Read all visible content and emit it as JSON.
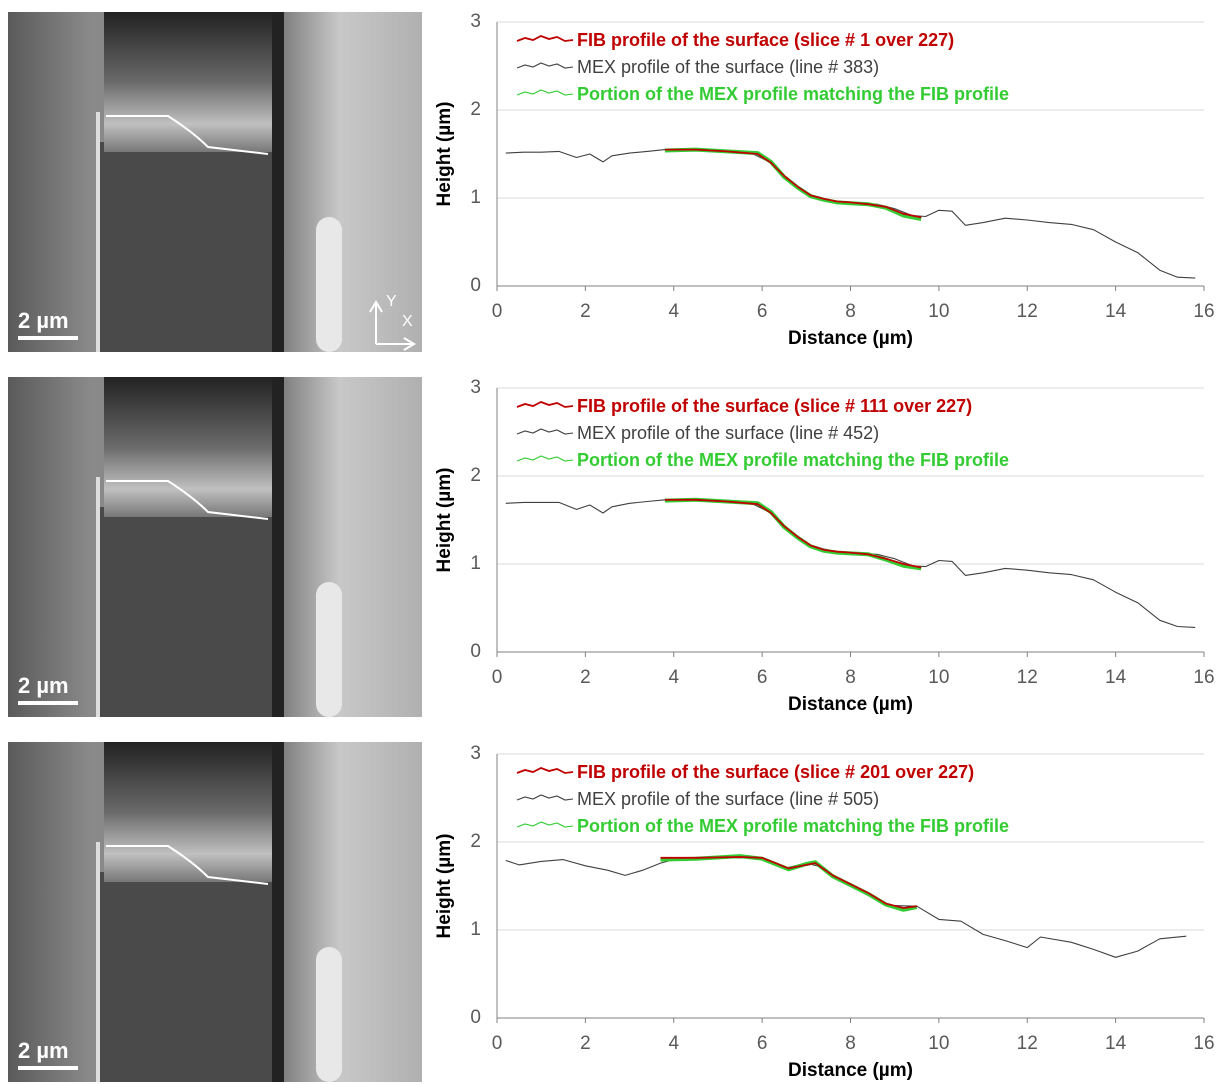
{
  "chart_data": [
    {
      "type": "line",
      "xlabel": "Distance (µm)",
      "ylabel": "Height (µm)",
      "xlim": [
        0,
        16
      ],
      "ylim": [
        0,
        3
      ],
      "xticks": [
        0,
        2,
        4,
        6,
        8,
        10,
        12,
        14,
        16
      ],
      "yticks": [
        0,
        1,
        2,
        3
      ],
      "grid": true,
      "legend": "upper left",
      "series": [
        {
          "name": "FIB profile of the surface (slice # 1 over 227)",
          "color": "#c00000",
          "x": [
            3.8,
            4.5,
            5.2,
            5.9,
            6.2,
            6.5,
            6.8,
            7.1,
            7.4,
            7.7,
            8.0,
            8.4,
            8.8,
            9.2,
            9.6
          ],
          "values": [
            1.55,
            1.55,
            1.53,
            1.5,
            1.4,
            1.25,
            1.13,
            1.03,
            0.99,
            0.96,
            0.95,
            0.93,
            0.9,
            0.82,
            0.78
          ]
        },
        {
          "name": "MEX profile of the surface (line # 383)",
          "color": "#404040",
          "x": [
            0.2,
            0.6,
            1.0,
            1.4,
            1.8,
            2.1,
            2.4,
            2.6,
            3.0,
            3.4,
            3.8,
            4.2,
            5.0,
            5.8,
            6.2,
            6.6,
            7.0,
            7.4,
            7.8,
            8.2,
            8.6,
            9.0,
            9.4,
            9.7,
            10.0,
            10.3,
            10.6,
            11.0,
            11.5,
            12.0,
            12.5,
            13.0,
            13.5,
            14.0,
            14.5,
            15.0,
            15.4,
            15.8
          ],
          "values": [
            1.51,
            1.52,
            1.52,
            1.53,
            1.46,
            1.5,
            1.41,
            1.48,
            1.51,
            1.53,
            1.55,
            1.54,
            1.53,
            1.5,
            1.4,
            1.2,
            1.05,
            0.99,
            0.95,
            0.94,
            0.93,
            0.88,
            0.8,
            0.79,
            0.86,
            0.85,
            0.69,
            0.72,
            0.77,
            0.75,
            0.72,
            0.7,
            0.64,
            0.5,
            0.38,
            0.18,
            0.1,
            0.09
          ]
        },
        {
          "name": "Portion of the MEX profile matching the FIB profile",
          "color": "#33cc33",
          "x": [
            3.8,
            4.5,
            5.2,
            5.9,
            6.2,
            6.5,
            6.8,
            7.1,
            7.4,
            7.7,
            8.0,
            8.4,
            8.8,
            9.2,
            9.6
          ],
          "values": [
            1.54,
            1.55,
            1.53,
            1.51,
            1.41,
            1.24,
            1.12,
            1.02,
            0.98,
            0.95,
            0.94,
            0.93,
            0.89,
            0.8,
            0.76
          ]
        }
      ]
    },
    {
      "type": "line",
      "xlabel": "Distance (µm)",
      "ylabel": "Height (µm)",
      "xlim": [
        0,
        16
      ],
      "ylim": [
        0,
        3
      ],
      "xticks": [
        0,
        2,
        4,
        6,
        8,
        10,
        12,
        14,
        16
      ],
      "yticks": [
        0,
        1,
        2,
        3
      ],
      "grid": true,
      "legend": "upper left",
      "series": [
        {
          "name": "FIB profile of the surface (slice # 111 over 227)",
          "color": "#c00000",
          "x": [
            3.8,
            4.5,
            5.2,
            5.9,
            6.2,
            6.5,
            6.8,
            7.1,
            7.4,
            7.7,
            8.0,
            8.4,
            8.8,
            9.2,
            9.6
          ],
          "values": [
            1.73,
            1.73,
            1.71,
            1.68,
            1.58,
            1.43,
            1.31,
            1.21,
            1.16,
            1.14,
            1.13,
            1.11,
            1.06,
            1.0,
            0.96
          ]
        },
        {
          "name": "MEX profile of the surface (line # 452)",
          "color": "#404040",
          "x": [
            0.2,
            0.6,
            1.0,
            1.4,
            1.8,
            2.1,
            2.4,
            2.6,
            3.0,
            3.4,
            3.8,
            4.2,
            5.0,
            5.8,
            6.2,
            6.6,
            7.0,
            7.4,
            7.8,
            8.2,
            8.6,
            9.0,
            9.4,
            9.7,
            10.0,
            10.3,
            10.6,
            11.0,
            11.5,
            12.0,
            12.5,
            13.0,
            13.5,
            14.0,
            14.5,
            15.0,
            15.4,
            15.8
          ],
          "values": [
            1.69,
            1.7,
            1.7,
            1.7,
            1.62,
            1.67,
            1.58,
            1.65,
            1.69,
            1.71,
            1.73,
            1.72,
            1.71,
            1.68,
            1.58,
            1.38,
            1.23,
            1.17,
            1.13,
            1.12,
            1.11,
            1.06,
            0.98,
            0.97,
            1.04,
            1.03,
            0.87,
            0.9,
            0.95,
            0.93,
            0.9,
            0.88,
            0.82,
            0.68,
            0.56,
            0.36,
            0.29,
            0.28
          ]
        },
        {
          "name": "Portion of the MEX profile matching the FIB profile",
          "color": "#33cc33",
          "x": [
            3.8,
            4.5,
            5.2,
            5.9,
            6.2,
            6.5,
            6.8,
            7.1,
            7.4,
            7.7,
            8.0,
            8.4,
            8.8,
            9.2,
            9.6
          ],
          "values": [
            1.72,
            1.73,
            1.71,
            1.69,
            1.59,
            1.42,
            1.3,
            1.2,
            1.15,
            1.13,
            1.12,
            1.11,
            1.05,
            0.98,
            0.95
          ]
        }
      ]
    },
    {
      "type": "line",
      "xlabel": "Distance (µm)",
      "ylabel": "Height (µm)",
      "xlim": [
        0,
        16
      ],
      "ylim": [
        0,
        3
      ],
      "xticks": [
        0,
        2,
        4,
        6,
        8,
        10,
        12,
        14,
        16
      ],
      "yticks": [
        0,
        1,
        2,
        3
      ],
      "grid": true,
      "legend": "upper left",
      "series": [
        {
          "name": "FIB profile of the surface (slice # 201 over 227)",
          "color": "#c00000",
          "x": [
            3.7,
            4.5,
            5.5,
            6.0,
            6.3,
            6.6,
            7.0,
            7.2,
            7.6,
            8.0,
            8.4,
            8.8,
            9.2,
            9.5
          ],
          "values": [
            1.82,
            1.82,
            1.83,
            1.82,
            1.76,
            1.7,
            1.74,
            1.76,
            1.62,
            1.52,
            1.42,
            1.3,
            1.25,
            1.27
          ]
        },
        {
          "name": "MEX profile of the surface (line # 505)",
          "color": "#404040",
          "x": [
            0.2,
            0.5,
            1.0,
            1.5,
            2.0,
            2.5,
            2.9,
            3.3,
            3.7,
            4.0,
            5.0,
            6.0,
            6.5,
            7.0,
            7.3,
            7.8,
            8.3,
            8.8,
            9.5,
            10.0,
            10.5,
            11.0,
            11.5,
            12.0,
            12.3,
            13.0,
            13.5,
            14.0,
            14.5,
            15.0,
            15.6
          ],
          "values": [
            1.79,
            1.74,
            1.78,
            1.8,
            1.73,
            1.68,
            1.62,
            1.68,
            1.76,
            1.8,
            1.82,
            1.82,
            1.7,
            1.76,
            1.72,
            1.55,
            1.44,
            1.28,
            1.27,
            1.12,
            1.1,
            0.95,
            0.88,
            0.8,
            0.92,
            0.86,
            0.78,
            0.69,
            0.76,
            0.9,
            0.93
          ]
        },
        {
          "name": "Portion of the MEX profile matching the FIB profile",
          "color": "#33cc33",
          "x": [
            3.7,
            4.5,
            5.5,
            6.0,
            6.3,
            6.6,
            7.0,
            7.2,
            7.6,
            8.0,
            8.4,
            8.8,
            9.2,
            9.5
          ],
          "values": [
            1.8,
            1.81,
            1.84,
            1.81,
            1.75,
            1.69,
            1.75,
            1.77,
            1.61,
            1.51,
            1.41,
            1.29,
            1.23,
            1.26
          ]
        }
      ]
    }
  ],
  "micrographs": [
    {
      "scale_bar": "2 µm",
      "axes": [
        "Y",
        "X"
      ]
    },
    {
      "scale_bar": "2 µm"
    },
    {
      "scale_bar": "2 µm"
    }
  ]
}
